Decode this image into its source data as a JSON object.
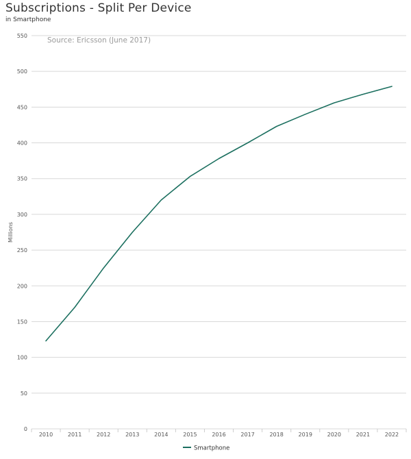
{
  "header": {
    "title": "Subscriptions - Split Per Device",
    "subtitle": "in Smartphone"
  },
  "chart_data": {
    "type": "line",
    "x": [
      "2010",
      "2011",
      "2012",
      "2013",
      "2014",
      "2015",
      "2016",
      "2017",
      "2018",
      "2019",
      "2020",
      "2021",
      "2022"
    ],
    "series": [
      {
        "name": "Smartphone",
        "color": "#1b6f5f",
        "values": [
          123,
          170,
          225,
          275,
          320,
          353,
          378,
          400,
          423,
          440,
          456,
          468,
          479
        ]
      }
    ],
    "ylabel": "Millions",
    "ylim": [
      0,
      550
    ],
    "yticks": [
      0,
      50,
      100,
      150,
      200,
      250,
      300,
      350,
      400,
      450,
      500,
      550
    ],
    "annotation": "Source: Ericsson (June 2017)",
    "grid": true,
    "legend": "bottom-center"
  }
}
